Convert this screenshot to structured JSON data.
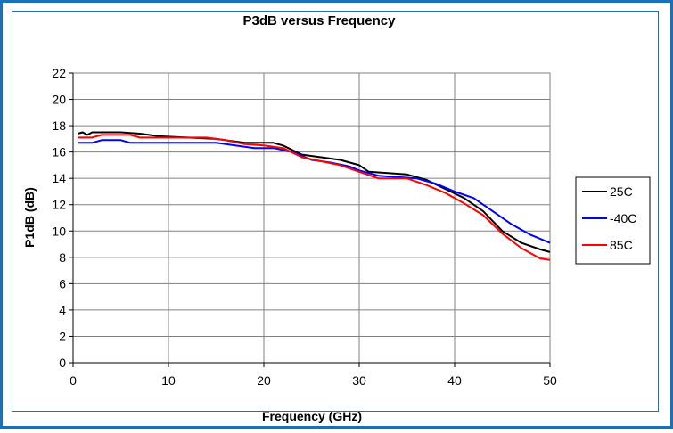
{
  "chart_data": {
    "type": "line",
    "title": "P3dB versus Frequency",
    "xlabel": "Frequency (GHz)",
    "ylabel": "P1dB (dB)",
    "xlim": [
      0,
      50
    ],
    "ylim": [
      0,
      22
    ],
    "xticks": [
      0,
      10,
      20,
      30,
      40,
      50
    ],
    "yticks": [
      0,
      2,
      4,
      6,
      8,
      10,
      12,
      14,
      16,
      18,
      20,
      22
    ],
    "grid": true,
    "legend_position": "right",
    "series": [
      {
        "name": "25C",
        "color": "#000000",
        "points": [
          [
            0.5,
            17.4
          ],
          [
            1,
            17.5
          ],
          [
            1.5,
            17.3
          ],
          [
            2,
            17.5
          ],
          [
            3,
            17.5
          ],
          [
            5,
            17.5
          ],
          [
            7,
            17.4
          ],
          [
            9,
            17.2
          ],
          [
            12,
            17.1
          ],
          [
            15,
            17.0
          ],
          [
            18,
            16.7
          ],
          [
            21,
            16.7
          ],
          [
            22,
            16.5
          ],
          [
            24,
            15.8
          ],
          [
            26,
            15.6
          ],
          [
            28,
            15.4
          ],
          [
            30,
            15.0
          ],
          [
            31,
            14.5
          ],
          [
            33,
            14.4
          ],
          [
            35,
            14.3
          ],
          [
            37,
            13.9
          ],
          [
            39,
            13.2
          ],
          [
            41,
            12.5
          ],
          [
            43,
            11.5
          ],
          [
            45,
            10.0
          ],
          [
            47,
            9.1
          ],
          [
            49,
            8.6
          ],
          [
            50,
            8.4
          ]
        ]
      },
      {
        "name": "-40C",
        "color": "#0000ff",
        "points": [
          [
            0.5,
            16.7
          ],
          [
            2,
            16.7
          ],
          [
            3,
            16.9
          ],
          [
            5,
            16.9
          ],
          [
            6,
            16.7
          ],
          [
            10,
            16.7
          ],
          [
            15,
            16.7
          ],
          [
            17,
            16.5
          ],
          [
            19,
            16.3
          ],
          [
            21,
            16.3
          ],
          [
            23,
            16.0
          ],
          [
            25,
            15.4
          ],
          [
            27,
            15.2
          ],
          [
            29,
            14.9
          ],
          [
            30,
            14.6
          ],
          [
            32,
            14.2
          ],
          [
            34,
            14.1
          ],
          [
            36,
            14.0
          ],
          [
            38,
            13.6
          ],
          [
            40,
            13.0
          ],
          [
            42,
            12.5
          ],
          [
            44,
            11.5
          ],
          [
            46,
            10.5
          ],
          [
            48,
            9.7
          ],
          [
            50,
            9.1
          ]
        ]
      },
      {
        "name": "85C",
        "color": "#ff0000",
        "points": [
          [
            0.5,
            17.1
          ],
          [
            2,
            17.1
          ],
          [
            3,
            17.3
          ],
          [
            6,
            17.3
          ],
          [
            7,
            17.1
          ],
          [
            10,
            17.1
          ],
          [
            14,
            17.1
          ],
          [
            16,
            16.9
          ],
          [
            18,
            16.6
          ],
          [
            20,
            16.5
          ],
          [
            22,
            16.3
          ],
          [
            24,
            15.6
          ],
          [
            26,
            15.3
          ],
          [
            28,
            15.0
          ],
          [
            30,
            14.5
          ],
          [
            32,
            14.0
          ],
          [
            35,
            14.0
          ],
          [
            37,
            13.5
          ],
          [
            39,
            12.9
          ],
          [
            41,
            12.1
          ],
          [
            43,
            11.2
          ],
          [
            45,
            9.8
          ],
          [
            47,
            8.7
          ],
          [
            49,
            7.9
          ],
          [
            50,
            7.8
          ]
        ]
      }
    ]
  }
}
